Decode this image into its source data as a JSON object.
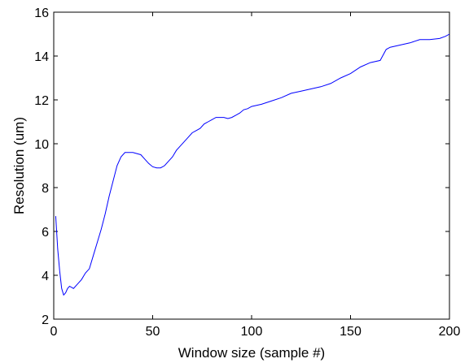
{
  "chart_data": {
    "type": "line",
    "title": "",
    "xlabel": "Window size (sample #)",
    "ylabel": "Resolution (um)",
    "xlim": [
      0,
      200
    ],
    "ylim": [
      2,
      16
    ],
    "xticks": [
      0,
      50,
      100,
      150,
      200
    ],
    "yticks": [
      2,
      4,
      6,
      8,
      10,
      12,
      14,
      16
    ],
    "grid": false,
    "line_color": "#0000ff",
    "series": [
      {
        "x": [
          1,
          2,
          3,
          4,
          5,
          6,
          7,
          8,
          10,
          12,
          14,
          16,
          18,
          20,
          22,
          24,
          26,
          28,
          30,
          32,
          34,
          36,
          38,
          40,
          42,
          44,
          46,
          48,
          50,
          52,
          54,
          56,
          58,
          60,
          62,
          64,
          66,
          68,
          70,
          72,
          74,
          76,
          78,
          80,
          82,
          84,
          86,
          88,
          90,
          92,
          94,
          96,
          98,
          100,
          105,
          110,
          115,
          120,
          125,
          130,
          135,
          140,
          145,
          150,
          155,
          160,
          165,
          168,
          170,
          175,
          180,
          185,
          190,
          195,
          198,
          200
        ],
        "y": [
          6.7,
          5.2,
          4.2,
          3.4,
          3.1,
          3.2,
          3.4,
          3.5,
          3.4,
          3.6,
          3.8,
          4.1,
          4.3,
          4.9,
          5.5,
          6.1,
          6.8,
          7.6,
          8.3,
          9.0,
          9.4,
          9.6,
          9.6,
          9.6,
          9.55,
          9.5,
          9.3,
          9.1,
          8.95,
          8.9,
          8.9,
          9.0,
          9.2,
          9.4,
          9.7,
          9.9,
          10.1,
          10.3,
          10.5,
          10.6,
          10.7,
          10.9,
          11.0,
          11.1,
          11.2,
          11.2,
          11.2,
          11.15,
          11.2,
          11.3,
          11.4,
          11.55,
          11.6,
          11.7,
          11.8,
          11.95,
          12.1,
          12.3,
          12.4,
          12.5,
          12.6,
          12.75,
          13.0,
          13.2,
          13.5,
          13.7,
          13.8,
          14.3,
          14.4,
          14.5,
          14.6,
          14.75,
          14.75,
          14.8,
          14.9,
          15.0
        ]
      }
    ]
  }
}
